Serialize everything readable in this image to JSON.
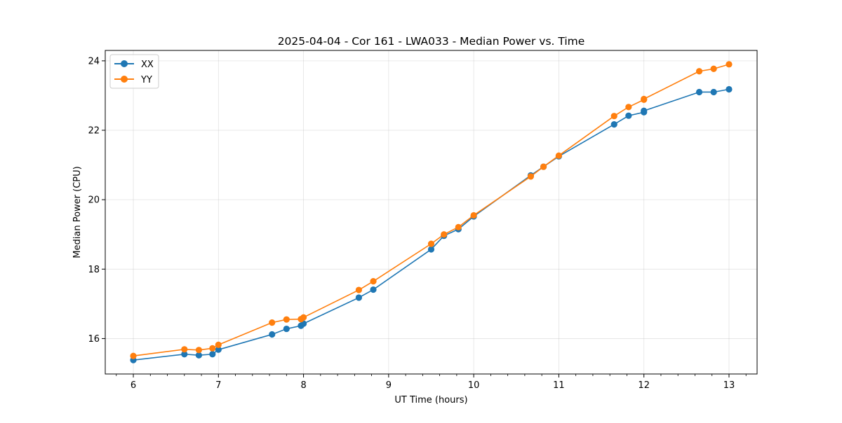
{
  "chart_data": {
    "type": "line",
    "title": "2025-04-04 - Cor 161 - LWA033 - Median Power vs. Time",
    "xlabel": "UT Time (hours)",
    "ylabel": "Median Power (CPU)",
    "xlim": [
      5.67,
      13.33
    ],
    "ylim": [
      14.98,
      24.3
    ],
    "xticks": [
      6,
      7,
      8,
      9,
      10,
      11,
      12,
      13
    ],
    "xticklabels": [
      "6",
      "7",
      "8",
      "9",
      "10",
      "11",
      "12",
      "13"
    ],
    "yticks": [
      16,
      18,
      20,
      22,
      24
    ],
    "yticklabels": [
      "16",
      "18",
      "20",
      "22",
      "24"
    ],
    "grid": true,
    "legend_location": "upper-left",
    "series": [
      {
        "name": "XX",
        "color": "#1f77b4",
        "x": [
          6.0,
          6.6,
          6.77,
          6.93,
          7.0,
          7.63,
          7.8,
          7.97,
          8.0,
          8.65,
          8.82,
          9.5,
          9.65,
          9.82,
          10.0,
          10.67,
          10.82,
          11.0,
          11.65,
          11.82,
          12.0,
          12.0,
          12.65,
          12.82,
          13.0
        ],
        "y": [
          15.38,
          15.55,
          15.52,
          15.55,
          15.68,
          16.12,
          16.28,
          16.37,
          16.43,
          17.18,
          17.41,
          18.57,
          18.96,
          19.15,
          19.52,
          20.7,
          20.95,
          21.25,
          22.17,
          22.42,
          22.52,
          22.56,
          23.1,
          23.1,
          23.18
        ]
      },
      {
        "name": "YY",
        "color": "#ff7f0e",
        "x": [
          6.0,
          6.6,
          6.77,
          6.93,
          7.0,
          7.63,
          7.8,
          7.97,
          8.0,
          8.65,
          8.82,
          9.5,
          9.65,
          9.82,
          10.0,
          10.67,
          10.82,
          11.0,
          11.65,
          11.82,
          12.0,
          12.0,
          12.65,
          12.82,
          13.0
        ],
        "y": [
          15.5,
          15.69,
          15.67,
          15.72,
          15.82,
          16.46,
          16.55,
          16.56,
          16.61,
          17.4,
          17.65,
          18.73,
          19.0,
          19.21,
          19.55,
          20.67,
          20.95,
          21.27,
          22.41,
          22.67,
          22.88,
          22.9,
          23.7,
          23.77,
          23.9
        ]
      }
    ]
  }
}
